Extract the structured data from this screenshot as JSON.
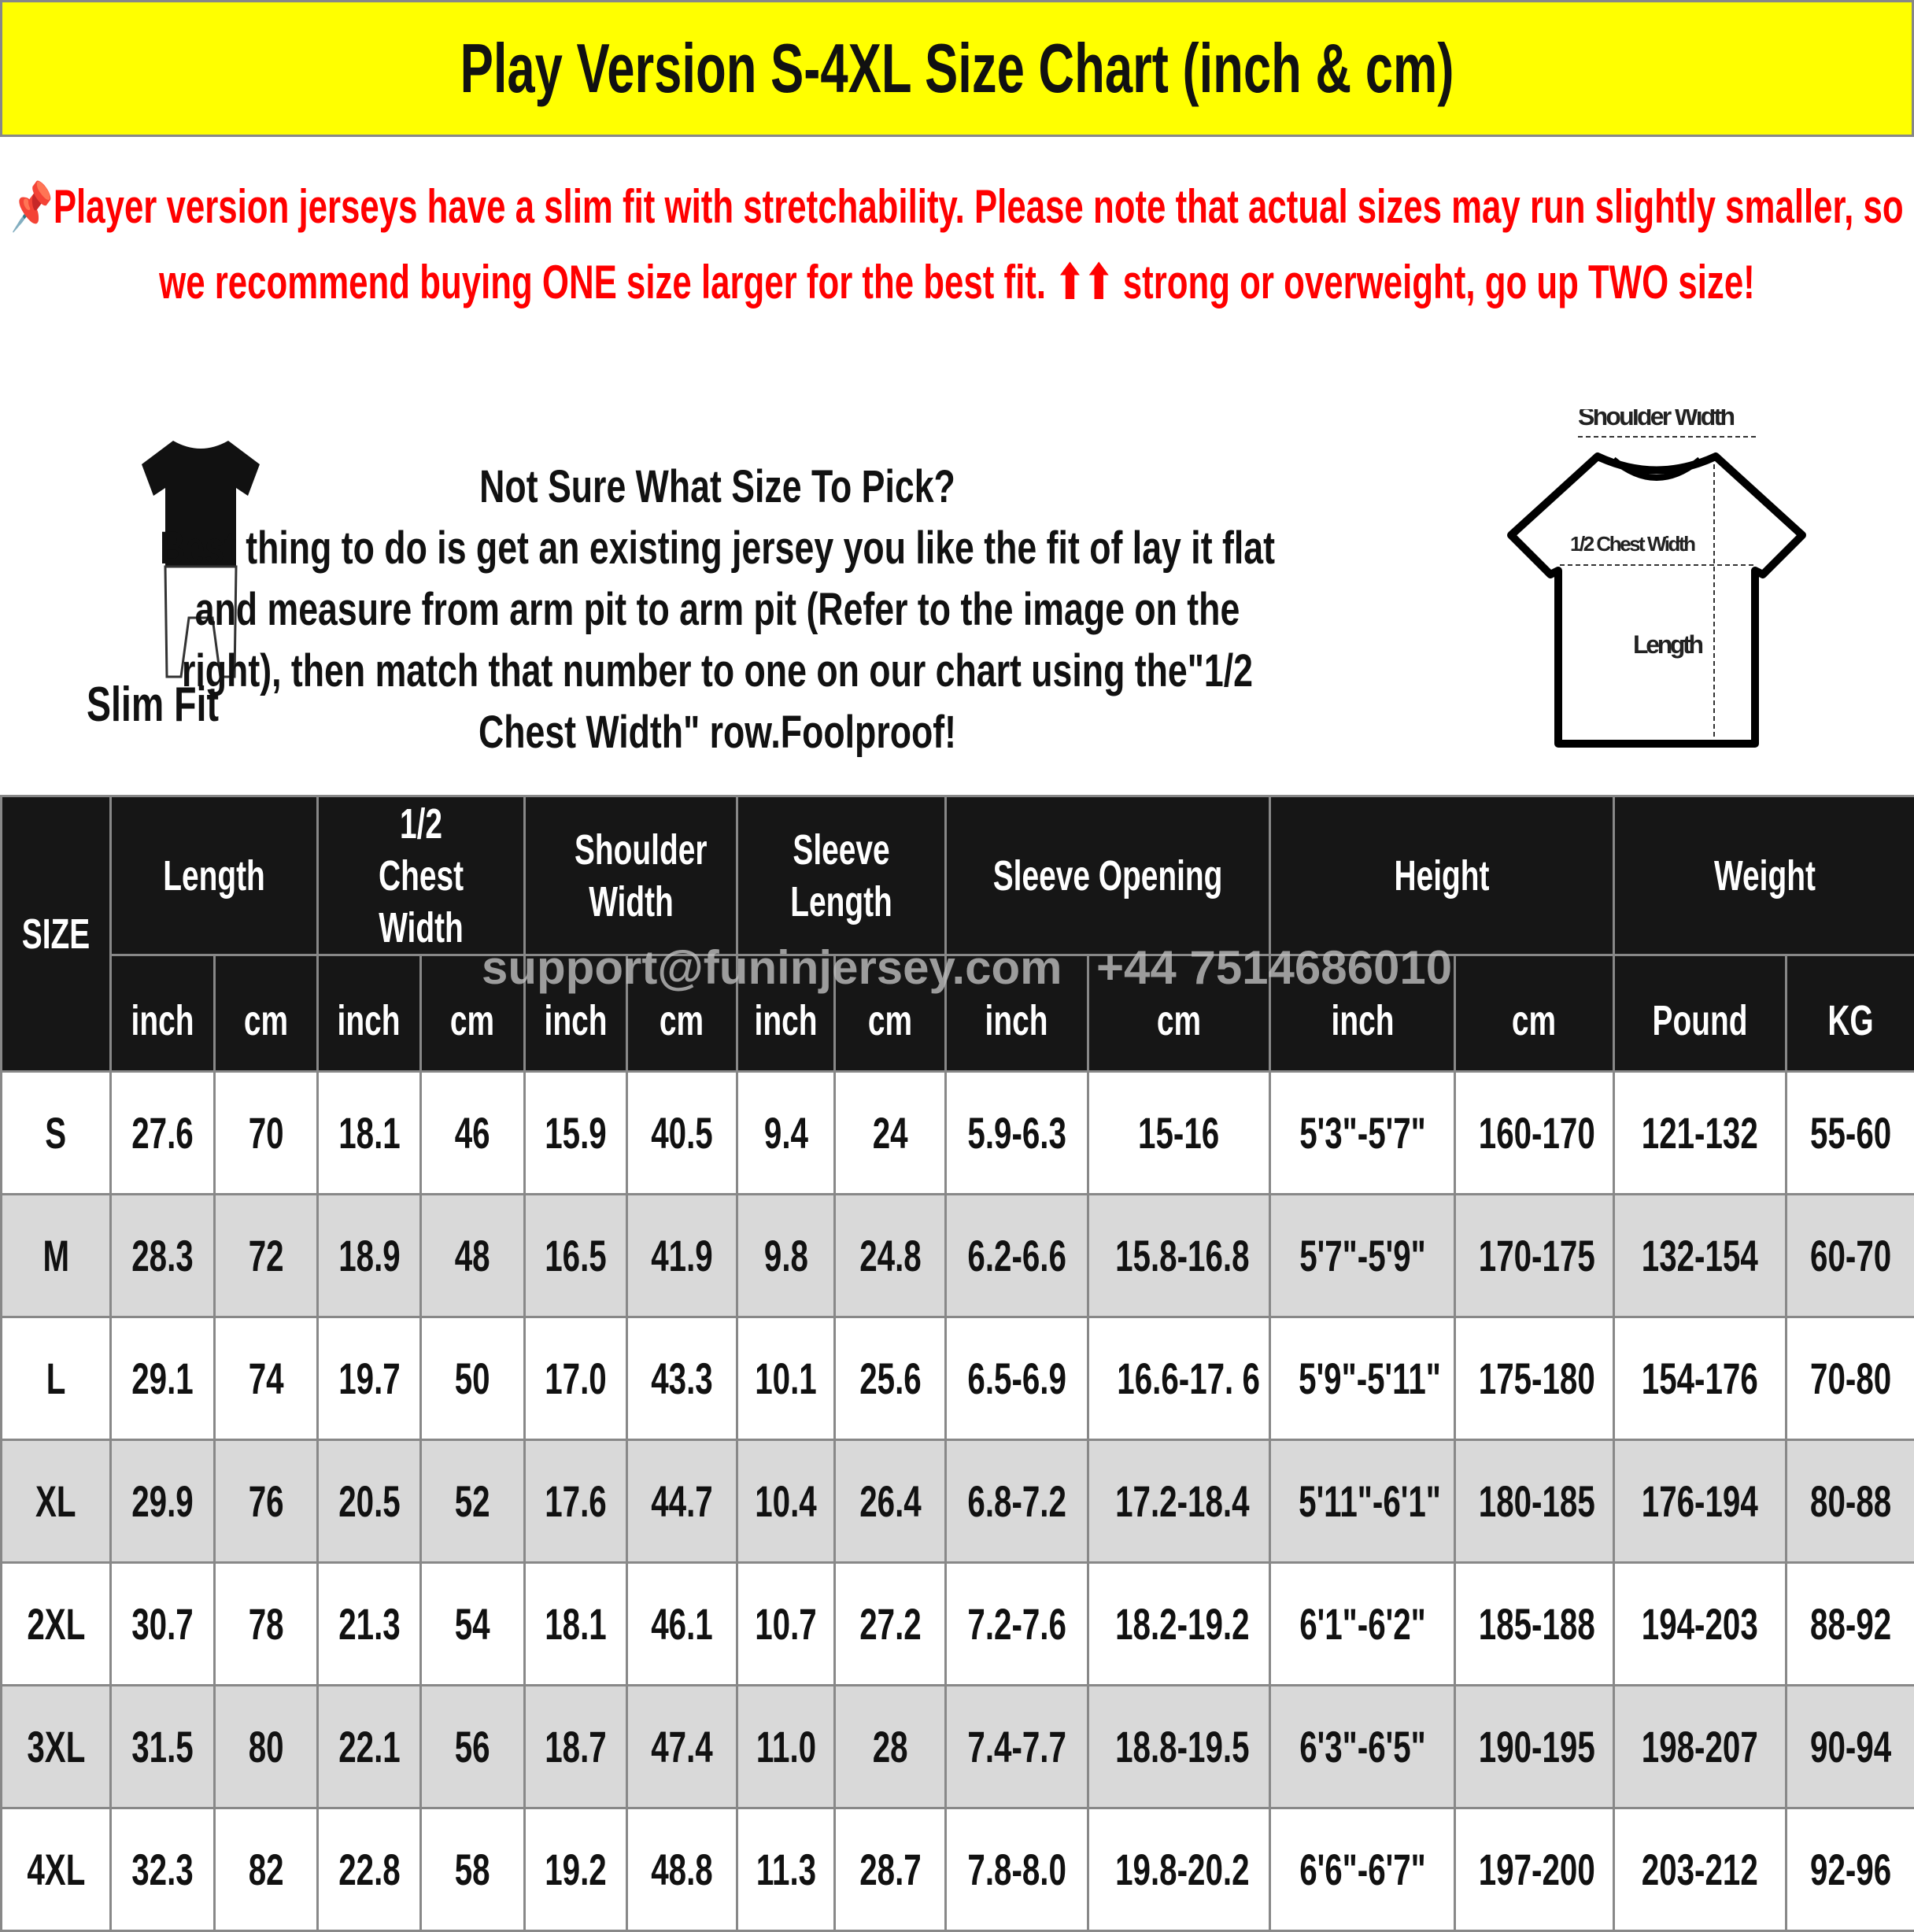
{
  "title": "Play Version S-4XL Size Chart (inch & cm)",
  "notice": {
    "icon": "pushpin-icon",
    "text": "Player version jerseys have a slim fit with stretchability. Please note that actual sizes may run slightly smaller, so we recommend buying ONE size larger for the best fit. ⬆⬆ strong or overweight, go up TWO size!",
    "color": "#ff0000"
  },
  "slim_fit": {
    "label": "Slim Fit"
  },
  "advice": {
    "heading": "Not Sure What Size To Pick?",
    "body": "Best thing to do is get an existing jersey you like the fit of lay it flat and measure from arm pit to arm pit (Refer to the image on the right), then match that number to one on our chart using the\"1/2 Chest Width\" row.Foolproof!"
  },
  "diagram": {
    "shoulder": "Shoulder Width",
    "chest": "1/2 Chest Width",
    "length": "Length"
  },
  "watermark": {
    "email": "support@funinjersey.com",
    "phone": "+44 7514686010"
  },
  "table": {
    "size_header": "SIZE",
    "groups": [
      "Length",
      "1/2 Chest Width",
      "Shoulder Width",
      "Sleeve Length",
      "Sleeve Opening",
      "Height",
      "Weight"
    ],
    "units": [
      "inch",
      "cm",
      "inch",
      "cm",
      "inch",
      "cm",
      "inch",
      "cm",
      "inch",
      "cm",
      "inch",
      "cm",
      "Pound",
      "KG"
    ],
    "rows": [
      [
        "S",
        "27.6",
        "70",
        "18.1",
        "46",
        "15.9",
        "40.5",
        "9.4",
        "24",
        "5.9-6.3",
        "15-16",
        "5'3\"-5'7\"",
        "160-170",
        "121-132",
        "55-60"
      ],
      [
        "M",
        "28.3",
        "72",
        "18.9",
        "48",
        "16.5",
        "41.9",
        "9.8",
        "24.8",
        "6.2-6.6",
        "15.8-16.8",
        "5'7\"-5'9\"",
        "170-175",
        "132-154",
        "60-70"
      ],
      [
        "L",
        "29.1",
        "74",
        "19.7",
        "50",
        "17.0",
        "43.3",
        "10.1",
        "25.6",
        "6.5-6.9",
        "16.6-17. 6",
        "5'9\"-5'11\"",
        "175-180",
        "154-176",
        "70-80"
      ],
      [
        "XL",
        "29.9",
        "76",
        "20.5",
        "52",
        "17.6",
        "44.7",
        "10.4",
        "26.4",
        "6.8-7.2",
        "17.2-18.4",
        "5'11\"-6'1\"",
        "180-185",
        "176-194",
        "80-88"
      ],
      [
        "2XL",
        "30.7",
        "78",
        "21.3",
        "54",
        "18.1",
        "46.1",
        "10.7",
        "27.2",
        "7.2-7.6",
        "18.2-19.2",
        "6'1\"-6'2\"",
        "185-188",
        "194-203",
        "88-92"
      ],
      [
        "3XL",
        "31.5",
        "80",
        "22.1",
        "56",
        "18.7",
        "47.4",
        "11.0",
        "28",
        "7.4-7.7",
        "18.8-19.5",
        "6'3\"-6'5\"",
        "190-195",
        "198-207",
        "90-94"
      ],
      [
        "4XL",
        "32.3",
        "82",
        "22.8",
        "58",
        "19.2",
        "48.8",
        "11.3",
        "28.7",
        "7.8-8.0",
        "19.8-20.2",
        "6'6\"-6'7\"",
        "197-200",
        "203-212",
        "92-96"
      ]
    ]
  },
  "colors": {
    "title_bg": "#ffff00",
    "header_bg": "#161616",
    "alt_row": "#d9d9d9"
  }
}
